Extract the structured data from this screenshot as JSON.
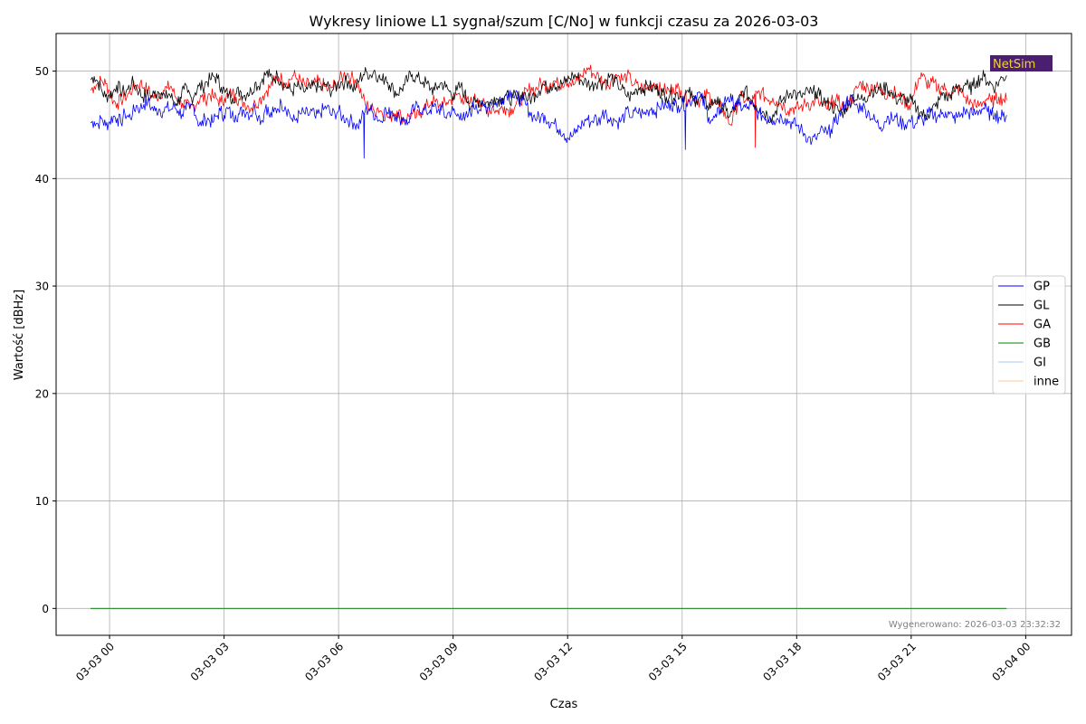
{
  "chart_data": {
    "type": "line",
    "title": "Wykresy liniowe L1 sygnał/szum [C/No] w funkcji czasu za 2026-03-03",
    "xlabel": "Czas",
    "ylabel": "Wartość [dBHz]",
    "x_range": [
      "2026-03-02T23:30",
      "2026-03-03T23:30"
    ],
    "xlim": [
      "2026-03-02T22:36",
      "2026-03-04T01:12"
    ],
    "ylim": [
      -2.5,
      53.5
    ],
    "x_ticks": [
      {
        "t": "2026-03-03T00:00",
        "label": "03-03 00"
      },
      {
        "t": "2026-03-03T03:00",
        "label": "03-03 03"
      },
      {
        "t": "2026-03-03T06:00",
        "label": "03-03 06"
      },
      {
        "t": "2026-03-03T09:00",
        "label": "03-03 09"
      },
      {
        "t": "2026-03-03T12:00",
        "label": "03-03 12"
      },
      {
        "t": "2026-03-03T15:00",
        "label": "03-03 15"
      },
      {
        "t": "2026-03-03T18:00",
        "label": "03-03 18"
      },
      {
        "t": "2026-03-03T21:00",
        "label": "03-03 21"
      },
      {
        "t": "2026-03-04T00:00",
        "label": "03-04 00"
      }
    ],
    "y_ticks": [
      0,
      10,
      20,
      30,
      40,
      50
    ],
    "grid": true,
    "legend_position": "center-right",
    "series": [
      {
        "name": "GP",
        "color": "#0000ff",
        "values": [
          45.2,
          45.3,
          45.1,
          45.6,
          44.9,
          45.3,
          45.8,
          45.6,
          45.2,
          46.1,
          45.7,
          46.0,
          46.8,
          46.5,
          46.9,
          47.2,
          46.6,
          46.3,
          46.5,
          46.2,
          46.6,
          46.4,
          46.7,
          46.3,
          46.0,
          46.4,
          46.5,
          46.9,
          45.4,
          44.9,
          45.6,
          45.5,
          45.2,
          45.8,
          46.3,
          45.9,
          46.5,
          45.8,
          45.9,
          46.0,
          46.4,
          46.2,
          45.9,
          46.8,
          45.8,
          45.4,
          46.9,
          45.7,
          46.2,
          46.5,
          47.0,
          46.7,
          46.2,
          45.3,
          45.6,
          46.0,
          46.1,
          45.9,
          46.3,
          45.6,
          46.1,
          46.4,
          46.7,
          45.9,
          46.1,
          46.3,
          45.7,
          45.6,
          45.4,
          45.2,
          44.8,
          45.6,
          46.3,
          46.5,
          46.1,
          45.8,
          45.3,
          46.4,
          46.0,
          46.3,
          45.9,
          45.6,
          45.7,
          45.0,
          46.1,
          46.5,
          46.8,
          46.3,
          46.2,
          46.4,
          46.7,
          46.3,
          46.6,
          45.7,
          46.2,
          46.3,
          45.8,
          46.1,
          45.4,
          45.9,
          46.5,
          46.9,
          46.4,
          46.8,
          46.6,
          47.1,
          46.9,
          47.2,
          47.5,
          47.9,
          48.2,
          47.5,
          47.6,
          47.2,
          46.9,
          46.2,
          45.8,
          45.6,
          45.7,
          45.9,
          45.3,
          45.2,
          44.9,
          44.6,
          44.2,
          43.8,
          43.9,
          44.2,
          44.8,
          45.1,
          45.6,
          45.2,
          45.7,
          45.2,
          45.9,
          46.4,
          45.3,
          45.6,
          45.2,
          45.4,
          45.9,
          46.2,
          45.7,
          46.3,
          46.1,
          46.0,
          46.3,
          46.6,
          46.2,
          46.7,
          46.9,
          46.6,
          47.0,
          46.8,
          46.8,
          46.9,
          47.0,
          47.2,
          47.5,
          48.0,
          47.6,
          46.5,
          45.7,
          45.4,
          45.7,
          46.5,
          47.1,
          47.6,
          47.2,
          47.0,
          46.8,
          46.6,
          46.5,
          46.9,
          46.4,
          46.0,
          45.9,
          45.5,
          45.8,
          45.4,
          45.6,
          45.8,
          45.6,
          45.3,
          45.1,
          45.0,
          44.6,
          44.2,
          43.8,
          43.5,
          43.7,
          44.2,
          44.5,
          44.1,
          44.6,
          45.2,
          45.8,
          46.4,
          47.2,
          47.4,
          47.0,
          46.6,
          46.8,
          46.4,
          46.1,
          45.5,
          45.2,
          44.8,
          45.3,
          45.8,
          45.5,
          45.7,
          45.2,
          45.1,
          45.2,
          45.4,
          45.0,
          45.5,
          45.4,
          45.8,
          46.1,
          45.9,
          45.8,
          46.0,
          46.2,
          46.0,
          45.6,
          45.7,
          45.9,
          46.3,
          46.1,
          46.0,
          46.1,
          46.4,
          46.6,
          46.2,
          45.9,
          46.1,
          45.7,
          45.8,
          45.9
        ]
      },
      {
        "name": "GL",
        "color": "#000000",
        "values": [
          49.2,
          49.5,
          49.0,
          48.2,
          47.6,
          47.8,
          48.0,
          48.7,
          48.2,
          48.0,
          48.3,
          48.9,
          48.7,
          48.1,
          47.6,
          47.8,
          47.5,
          47.9,
          48.1,
          48.0,
          47.5,
          47.9,
          47.3,
          47.0,
          47.6,
          48.3,
          48.0,
          47.5,
          48.0,
          48.6,
          48.5,
          49.0,
          49.2,
          49.5,
          49.3,
          48.5,
          48.0,
          47.8,
          47.5,
          47.9,
          48.2,
          47.7,
          48.0,
          48.1,
          48.9,
          48.6,
          49.3,
          49.8,
          49.5,
          49.3,
          49.6,
          49.0,
          48.7,
          48.4,
          48.1,
          48.6,
          48.4,
          48.1,
          48.3,
          48.4,
          48.7,
          48.5,
          48.3,
          48.8,
          48.2,
          48.3,
          48.7,
          49.0,
          48.9,
          49.1,
          48.4,
          48.5,
          49.3,
          49.7,
          49.9,
          49.6,
          50.1,
          49.4,
          49.1,
          49.5,
          48.7,
          48.3,
          47.9,
          48.3,
          48.7,
          49.3,
          49.7,
          49.4,
          49.2,
          49.0,
          48.8,
          48.4,
          48.2,
          48.6,
          48.9,
          48.5,
          48.1,
          47.7,
          48.2,
          48.6,
          47.9,
          47.2,
          46.8,
          47.1,
          47.3,
          47.0,
          47.1,
          47.0,
          47.6,
          47.4,
          47.5,
          47.8,
          47.3,
          47.6,
          47.4,
          47.7,
          48.0,
          47.3,
          47.5,
          47.9,
          48.2,
          48.8,
          48.4,
          48.6,
          48.9,
          48.6,
          48.8,
          49.0,
          49.3,
          49.6,
          49.5,
          49.2,
          49.0,
          48.9,
          48.6,
          48.9,
          49.1,
          48.8,
          49.2,
          49.6,
          49.0,
          48.8,
          48.3,
          47.9,
          47.6,
          47.8,
          48.3,
          48.5,
          48.3,
          48.7,
          48.4,
          48.5,
          48.2,
          48.0,
          47.6,
          47.9,
          47.5,
          48.0,
          47.6,
          47.8,
          48.0,
          47.5,
          47.3,
          47.6,
          47.1,
          46.8,
          46.8,
          47.4,
          46.9,
          46.6,
          46.3,
          45.8,
          46.4,
          46.9,
          47.7,
          48.3,
          47.6,
          47.3,
          46.8,
          46.5,
          46.2,
          46.0,
          45.6,
          46.1,
          46.9,
          47.3,
          47.6,
          47.9,
          48.2,
          47.6,
          47.7,
          47.8,
          48.1,
          47.9,
          48.1,
          47.7,
          47.2,
          47.0,
          46.8,
          46.5,
          46.3,
          46.1,
          46.6,
          47.1,
          47.8,
          47.3,
          47.4,
          47.6,
          47.7,
          48.3,
          48.0,
          48.4,
          48.2,
          48.6,
          48.0,
          47.5,
          47.3,
          47.6,
          47.2,
          47.4,
          46.9,
          46.5,
          46.2,
          45.8,
          46.0,
          46.4,
          46.7,
          47.3,
          48.0,
          47.4,
          47.8,
          48.1,
          48.6,
          48.4,
          48.9,
          48.3,
          48.6,
          49.1,
          49.3,
          49.5,
          49.0,
          48.8,
          48.5,
          49.1,
          49.4,
          49.6
        ]
      },
      {
        "name": "GA",
        "color": "#ff0000",
        "values": [
          48.2,
          48.6,
          48.9,
          49.1,
          48.8,
          48.1,
          47.2,
          47.0,
          47.3,
          47.6,
          47.9,
          48.4,
          48.6,
          48.9,
          48.5,
          48.2,
          47.7,
          47.5,
          47.9,
          48.2,
          48.4,
          48.6,
          47.7,
          47.3,
          47.0,
          46.8,
          46.5,
          46.8,
          47.2,
          47.6,
          47.3,
          47.9,
          47.6,
          47.4,
          47.1,
          47.5,
          47.7,
          48.0,
          47.6,
          47.3,
          47.1,
          46.8,
          46.6,
          47.0,
          47.3,
          47.7,
          48.2,
          48.6,
          49.1,
          49.5,
          49.2,
          48.9,
          49.2,
          49.6,
          49.3,
          49.0,
          48.6,
          48.8,
          48.6,
          49.0,
          48.9,
          48.6,
          48.2,
          48.5,
          48.8,
          49.2,
          49.6,
          49.8,
          49.4,
          49.2,
          48.6,
          47.5,
          46.8,
          46.6,
          46.3,
          46.6,
          46.2,
          45.9,
          45.6,
          46.1,
          46.3,
          45.8,
          45.5,
          45.8,
          46.0,
          45.7,
          46.1,
          46.6,
          46.8,
          47.2,
          47.1,
          46.8,
          46.9,
          47.1,
          47.3,
          47.6,
          47.9,
          47.5,
          47.1,
          47.0,
          47.3,
          47.5,
          47.0,
          46.6,
          46.3,
          46.7,
          46.2,
          46.5,
          46.7,
          46.4,
          46.5,
          46.9,
          47.3,
          47.7,
          48.1,
          48.5,
          48.2,
          48.7,
          48.9,
          48.6,
          48.9,
          49.1,
          48.7,
          48.9,
          49.2,
          49.0,
          48.7,
          49.1,
          49.5,
          50.0,
          50.3,
          49.8,
          49.6,
          49.3,
          49.0,
          48.7,
          49.3,
          49.7,
          49.5,
          49.2,
          49.6,
          49.1,
          48.8,
          48.4,
          48.5,
          48.3,
          48.6,
          48.9,
          48.6,
          48.0,
          48.3,
          48.1,
          48.5,
          48.4,
          48.2,
          47.6,
          47.4,
          47.8,
          47.6,
          47.2,
          47.5,
          47.9,
          47.4,
          47.0,
          46.7,
          46.4,
          45.7,
          45.0,
          46.2,
          47.1,
          47.6,
          47.3,
          47.0,
          47.4,
          47.9,
          48.0,
          47.6,
          47.3,
          47.5,
          47.2,
          47.0,
          46.8,
          46.3,
          46.6,
          46.5,
          46.6,
          46.8,
          47.1,
          46.8,
          47.3,
          47.0,
          46.8,
          46.5,
          46.9,
          47.3,
          47.2,
          46.8,
          46.6,
          47.3,
          47.6,
          48.4,
          48.9,
          48.6,
          48.3,
          48.7,
          48.5,
          48.2,
          48.0,
          47.8,
          48.2,
          47.9,
          47.6,
          47.3,
          47.0,
          46.9,
          48.1,
          49.3,
          49.5,
          49.0,
          48.7,
          48.9,
          48.4,
          48.6,
          48.3,
          48.0,
          47.9,
          48.4,
          48.1,
          47.6,
          47.2,
          47.0,
          46.7,
          46.9,
          47.2,
          47.5,
          47.1,
          47.3,
          47.6,
          47.4,
          47.3
        ]
      },
      {
        "name": "GB",
        "color": "#008000",
        "values": [
          0,
          0,
          0,
          0,
          0,
          0,
          0,
          0,
          0,
          0,
          0,
          0,
          0,
          0,
          0,
          0,
          0,
          0,
          0,
          0,
          0,
          0,
          0,
          0,
          0
        ]
      },
      {
        "name": "GI",
        "color": "#a6c8ef",
        "values": [
          0,
          0,
          0,
          0,
          0,
          0,
          0,
          0,
          0,
          0,
          0,
          0,
          0,
          0,
          0,
          0,
          0,
          0,
          0,
          0,
          0,
          0,
          0,
          0,
          0
        ]
      },
      {
        "name": "inne",
        "color": "#f5c99b",
        "values": [
          0,
          0,
          0,
          0,
          0,
          0,
          0,
          0,
          0,
          0,
          0,
          0,
          0,
          0,
          0,
          0,
          0,
          0,
          0,
          0,
          0,
          0,
          0,
          0,
          0
        ]
      }
    ],
    "spikes": [
      {
        "series": "GP",
        "t": "2026-03-03T06:40",
        "value": 41.9
      },
      {
        "series": "GP",
        "t": "2026-03-03T15:05",
        "value": 42.7
      },
      {
        "series": "GA",
        "t": "2026-03-03T16:55",
        "value": 42.9
      }
    ]
  },
  "footer": {
    "generated": "Wygenerowano: 2026-03-03 23:32:32"
  },
  "logo": {
    "text": "NetSim",
    "bg_color": "#4b1f6f",
    "text_color": "#f0d23a"
  }
}
